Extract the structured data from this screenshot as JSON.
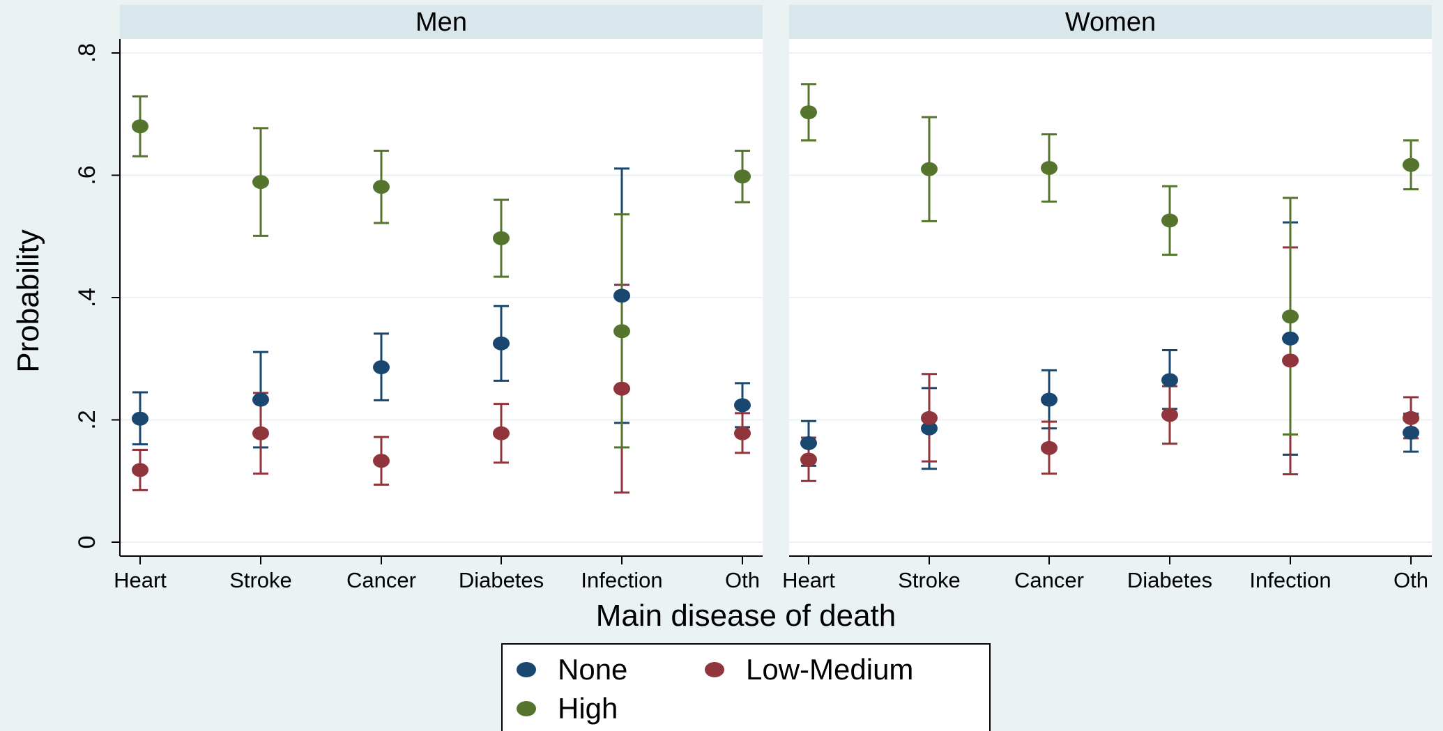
{
  "chart_data": {
    "type": "scatter",
    "ylabel": "Probability",
    "xlabel": "Main disease of death",
    "ylim": [
      0,
      0.8
    ],
    "yticks": [
      {
        "value": 0,
        "label": "0"
      },
      {
        "value": 0.2,
        "label": ".2"
      },
      {
        "value": 0.4,
        "label": ".4"
      },
      {
        "value": 0.6,
        "label": ".6"
      },
      {
        "value": 0.8,
        "label": ".8"
      }
    ],
    "categories": [
      "Heart",
      "Stroke",
      "Cancer",
      "Diabetes",
      "Infection",
      "Oth"
    ],
    "grid": true,
    "legend_position": "bottom",
    "series_styles": [
      {
        "name": "None",
        "color": "#1a476f"
      },
      {
        "name": "Low-Medium",
        "color": "#90353b"
      },
      {
        "name": "High",
        "color": "#55752f"
      }
    ],
    "panels": [
      {
        "title": "Men",
        "series": [
          {
            "name": "None",
            "values": [
              0.202,
              0.233,
              0.286,
              0.325,
              0.403,
              0.224
            ],
            "lower": [
              0.16,
              0.155,
              0.232,
              0.264,
              0.195,
              0.188
            ],
            "upper": [
              0.245,
              0.311,
              0.341,
              0.386,
              0.611,
              0.26
            ]
          },
          {
            "name": "Low-Medium",
            "values": [
              0.118,
              0.178,
              0.133,
              0.178,
              0.251,
              0.178
            ],
            "lower": [
              0.085,
              0.112,
              0.094,
              0.13,
              0.081,
              0.146
            ],
            "upper": [
              0.151,
              0.244,
              0.172,
              0.226,
              0.421,
              0.211
            ]
          },
          {
            "name": "High",
            "values": [
              0.68,
              0.589,
              0.581,
              0.497,
              0.345,
              0.598
            ],
            "lower": [
              0.631,
              0.501,
              0.522,
              0.434,
              0.155,
              0.556
            ],
            "upper": [
              0.729,
              0.677,
              0.64,
              0.56,
              0.536,
              0.64
            ]
          }
        ]
      },
      {
        "title": "Women",
        "series": [
          {
            "name": "None",
            "values": [
              0.162,
              0.186,
              0.233,
              0.265,
              0.333,
              0.179
            ],
            "lower": [
              0.125,
              0.12,
              0.186,
              0.218,
              0.143,
              0.148
            ],
            "upper": [
              0.198,
              0.252,
              0.281,
              0.314,
              0.523,
              0.21
            ]
          },
          {
            "name": "Low-Medium",
            "values": [
              0.135,
              0.203,
              0.154,
              0.208,
              0.297,
              0.203
            ],
            "lower": [
              0.1,
              0.132,
              0.112,
              0.161,
              0.111,
              0.17
            ],
            "upper": [
              0.171,
              0.275,
              0.197,
              0.255,
              0.482,
              0.237
            ]
          },
          {
            "name": "High",
            "values": [
              0.703,
              0.61,
              0.612,
              0.526,
              0.369,
              0.617
            ],
            "lower": [
              0.657,
              0.525,
              0.557,
              0.47,
              0.176,
              0.577
            ],
            "upper": [
              0.749,
              0.695,
              0.667,
              0.582,
              0.563,
              0.657
            ]
          }
        ]
      }
    ],
    "legend": {
      "items": [
        {
          "label": "None",
          "color": "#1a476f"
        },
        {
          "label": "Low-Medium",
          "color": "#90353b"
        },
        {
          "label": "High",
          "color": "#55752f"
        }
      ]
    }
  }
}
